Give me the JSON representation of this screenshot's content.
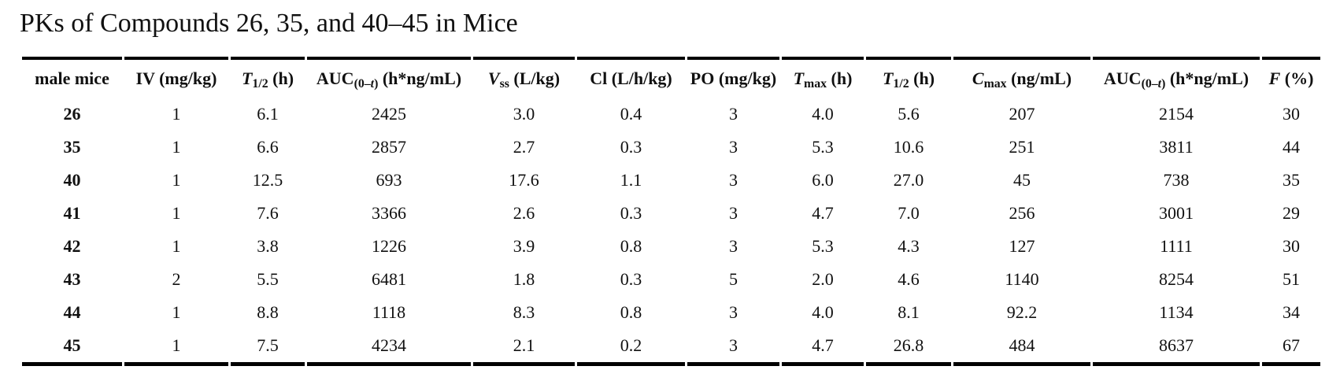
{
  "title": "PKs of Compounds 26, 35, and 40–45 in Mice",
  "text_color": "#111111",
  "rule_color": "#000000",
  "table": {
    "columns": [
      {
        "id": "male-mice",
        "fragments": [
          {
            "t": "male mice"
          }
        ]
      },
      {
        "id": "iv-dose",
        "fragments": [
          {
            "t": "IV (mg/kg)"
          }
        ]
      },
      {
        "id": "iv-t-half",
        "fragments": [
          {
            "t": "T",
            "i": true
          },
          {
            "t": "1/2",
            "sub": true
          },
          {
            "t": " (h)"
          }
        ]
      },
      {
        "id": "iv-auc",
        "fragments": [
          {
            "t": "AUC"
          },
          {
            "t": "(0–",
            "sub": true
          },
          {
            "t": "t",
            "sub": true,
            "i": true
          },
          {
            "t": ")",
            "sub": true
          },
          {
            "t": " (h*ng/mL)"
          }
        ]
      },
      {
        "id": "vss",
        "fragments": [
          {
            "t": "V",
            "i": true
          },
          {
            "t": "ss",
            "sub": true
          },
          {
            "t": " (L/kg)"
          }
        ]
      },
      {
        "id": "cl",
        "fragments": [
          {
            "t": "Cl (L/h/kg)"
          }
        ]
      },
      {
        "id": "po-dose",
        "fragments": [
          {
            "t": "PO (mg/kg)"
          }
        ]
      },
      {
        "id": "tmax",
        "fragments": [
          {
            "t": "T",
            "i": true
          },
          {
            "t": "max",
            "sub": true
          },
          {
            "t": " (h)"
          }
        ]
      },
      {
        "id": "po-t-half",
        "fragments": [
          {
            "t": "T",
            "i": true
          },
          {
            "t": "1/2",
            "sub": true
          },
          {
            "t": " (h)"
          }
        ]
      },
      {
        "id": "cmax",
        "fragments": [
          {
            "t": "C",
            "i": true
          },
          {
            "t": "max",
            "sub": true
          },
          {
            "t": " (ng/mL)"
          }
        ]
      },
      {
        "id": "po-auc",
        "fragments": [
          {
            "t": "AUC"
          },
          {
            "t": "(0–",
            "sub": true
          },
          {
            "t": "t",
            "sub": true,
            "i": true
          },
          {
            "t": ")",
            "sub": true
          },
          {
            "t": " (h*ng/mL)"
          }
        ]
      },
      {
        "id": "f-percent",
        "fragments": [
          {
            "t": "F",
            "i": true
          },
          {
            "t": " (%)"
          }
        ]
      }
    ],
    "rows": [
      {
        "compound": "26",
        "values": [
          "1",
          "6.1",
          "2425",
          "3.0",
          "0.4",
          "3",
          "4.0",
          "5.6",
          "207",
          "2154",
          "30"
        ]
      },
      {
        "compound": "35",
        "values": [
          "1",
          "6.6",
          "2857",
          "2.7",
          "0.3",
          "3",
          "5.3",
          "10.6",
          "251",
          "3811",
          "44"
        ]
      },
      {
        "compound": "40",
        "values": [
          "1",
          "12.5",
          "693",
          "17.6",
          "1.1",
          "3",
          "6.0",
          "27.0",
          "45",
          "738",
          "35"
        ]
      },
      {
        "compound": "41",
        "values": [
          "1",
          "7.6",
          "3366",
          "2.6",
          "0.3",
          "3",
          "4.7",
          "7.0",
          "256",
          "3001",
          "29"
        ]
      },
      {
        "compound": "42",
        "values": [
          "1",
          "3.8",
          "1226",
          "3.9",
          "0.8",
          "3",
          "5.3",
          "4.3",
          "127",
          "1111",
          "30"
        ]
      },
      {
        "compound": "43",
        "values": [
          "2",
          "5.5",
          "6481",
          "1.8",
          "0.3",
          "5",
          "2.0",
          "4.6",
          "1140",
          "8254",
          "51"
        ]
      },
      {
        "compound": "44",
        "values": [
          "1",
          "8.8",
          "1118",
          "8.3",
          "0.8",
          "3",
          "4.0",
          "8.1",
          "92.2",
          "1134",
          "34"
        ]
      },
      {
        "compound": "45",
        "values": [
          "1",
          "7.5",
          "4234",
          "2.1",
          "0.2",
          "3",
          "4.7",
          "26.8",
          "484",
          "8637",
          "67"
        ]
      }
    ]
  }
}
